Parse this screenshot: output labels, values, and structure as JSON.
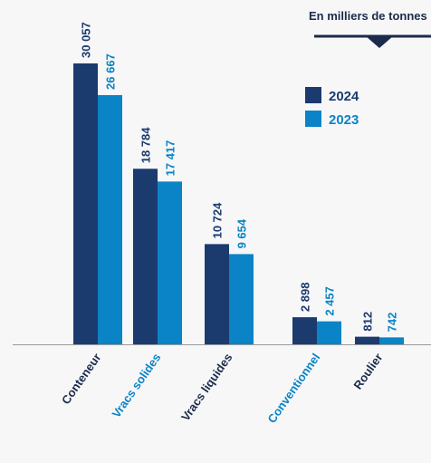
{
  "chart_data": {
    "type": "bar",
    "unit_note": "En milliers de tonnes",
    "categories": [
      "Conteneur",
      "Vracs solides",
      "Vracs liquides",
      "Conventionnel",
      "Roulier"
    ],
    "category_colors": [
      "#1b2b4b",
      "#0a84c6",
      "#1b2b4b",
      "#0a84c6",
      "#1b2b4b"
    ],
    "series": [
      {
        "name": "2024",
        "values": [
          30057,
          18784,
          10724,
          2898,
          812
        ],
        "labels": [
          "30 057",
          "18 784",
          "10 724",
          "2 898",
          "812"
        ],
        "color": "#1b3a6e"
      },
      {
        "name": "2023",
        "values": [
          26667,
          17417,
          9654,
          2457,
          742
        ],
        "labels": [
          "26 667",
          "17 417",
          "9 654",
          "2 457",
          "742"
        ],
        "color": "#0a84c6"
      }
    ],
    "ylim": [
      0,
      30057
    ],
    "legend_position": "top-right",
    "grid": false
  }
}
